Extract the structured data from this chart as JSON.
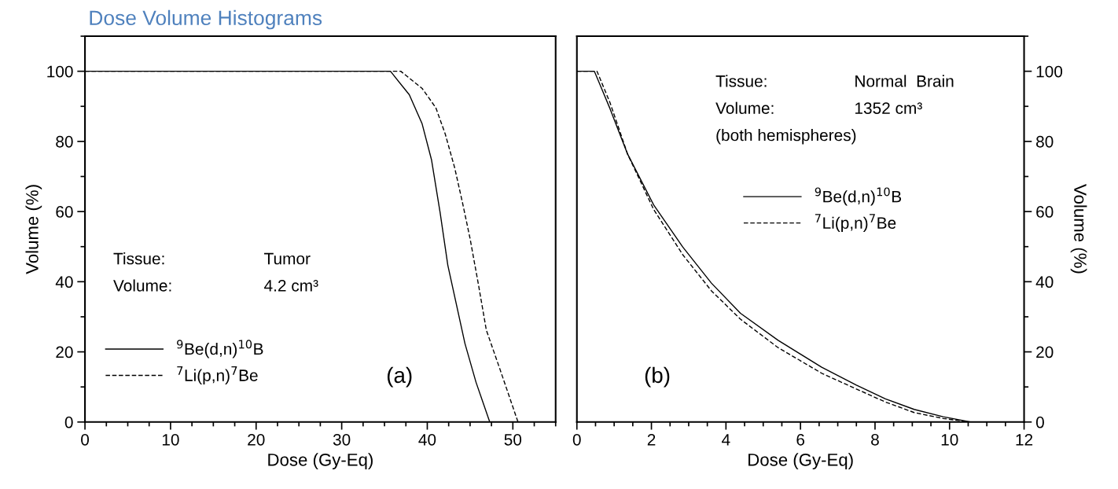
{
  "chart_data": [
    {
      "type": "line",
      "title": "Dose Volume Histograms",
      "xlabel": "Dose (Gy-Eq)",
      "ylabel": "Volume (%)",
      "xlim": [
        0,
        55
      ],
      "xticks": [
        0,
        10,
        20,
        30,
        40,
        50
      ],
      "ylim": [
        0,
        110
      ],
      "yticks": [
        0,
        20,
        40,
        60,
        80,
        100
      ],
      "grid": false,
      "legend": "lower left",
      "annotations": [
        "Tissue:",
        "Tumor",
        "Volume:",
        "4.2 cm³",
        "(a)"
      ],
      "series": [
        {
          "name": "$^{9}$Be(d,n)$^{10}$B",
          "color": "#000000",
          "line_style": "solid",
          "x": [
            0,
            35.7,
            37.9,
            39.4,
            40.5,
            41.5,
            42.4,
            43.2,
            44.4,
            45.7,
            47.3
          ],
          "values": [
            100,
            100,
            93.3,
            85,
            74.7,
            59.7,
            44.7,
            35.8,
            22.4,
            11.3,
            0
          ]
        },
        {
          "name": "$^{7}$Li(p,n)$^{7}$Be",
          "color": "#000000",
          "line_style": "dashed",
          "x": [
            0,
            36.9,
            39.4,
            41.0,
            42.1,
            43.2,
            44.1,
            45.0,
            46.0,
            46.9,
            48.5,
            50.6
          ],
          "values": [
            100,
            100,
            95.1,
            89.6,
            82.1,
            72.5,
            62.7,
            52.3,
            38.9,
            26.2,
            15,
            0
          ]
        }
      ]
    },
    {
      "type": "line",
      "xlabel": "Dose (Gy-Eq)",
      "ylabel": "Volume (%)",
      "xlim": [
        0,
        12
      ],
      "xticks": [
        0,
        2,
        4,
        6,
        8,
        10,
        12
      ],
      "ylim": [
        0,
        110
      ],
      "yticks": [
        0,
        20,
        40,
        60,
        80,
        100
      ],
      "grid": false,
      "legend": "center",
      "annotations": [
        "Tissue:",
        "Normal  Brain",
        "Volume:",
        "1352 cm³",
        "(both hemispheres)",
        "(b)"
      ],
      "series": [
        {
          "name": "$^{9}$Be(d,n)$^{10}$B",
          "color": "#000000",
          "line_style": "solid",
          "x": [
            0,
            0.47,
            0.89,
            1.36,
            2.06,
            2.84,
            3.61,
            4.39,
            5.4,
            6.57,
            7.5,
            8.28,
            9.05,
            9.83,
            10.57
          ],
          "values": [
            100,
            100,
            89.3,
            76.4,
            61.9,
            49.9,
            39.6,
            31.0,
            23.3,
            15.6,
            10.5,
            6.6,
            3.6,
            1.5,
            0
          ]
        },
        {
          "name": "$^{7}$Li(p,n)$^{7}$Be",
          "color": "#000000",
          "line_style": "dashed",
          "x": [
            0,
            0.54,
            0.89,
            1.36,
            2.06,
            2.84,
            3.61,
            4.39,
            5.4,
            6.57,
            7.5,
            8.28,
            9.05,
            9.83,
            10.53
          ],
          "values": [
            100,
            100,
            91.0,
            76.4,
            60.6,
            47.7,
            37.4,
            29.3,
            21.2,
            13.9,
            9.4,
            5.7,
            2.7,
            1.0,
            0
          ]
        }
      ]
    }
  ]
}
